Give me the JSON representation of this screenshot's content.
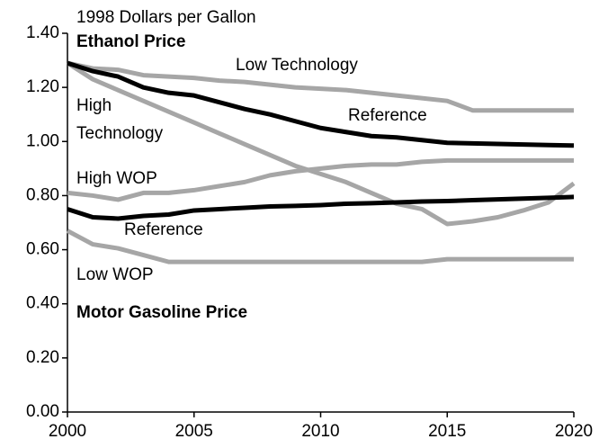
{
  "chart_data": {
    "type": "line",
    "y_label": "1998 Dollars per Gallon",
    "annotations": [
      "Ethanol Price",
      "Motor Gasoline Price"
    ],
    "x": [
      2000,
      2001,
      2002,
      2003,
      2004,
      2005,
      2006,
      2007,
      2008,
      2009,
      2010,
      2011,
      2012,
      2013,
      2014,
      2015,
      2016,
      2017,
      2018,
      2019,
      2020
    ],
    "xlim": [
      2000,
      2020
    ],
    "xticks": [
      2000,
      2005,
      2010,
      2015,
      2020
    ],
    "ylim": [
      0,
      1.4
    ],
    "yticks": [
      {
        "value": 0,
        "label": "0.00"
      },
      {
        "value": 0.2,
        "label": "0.20"
      },
      {
        "value": 0.4,
        "label": "0.40"
      },
      {
        "value": 0.6,
        "label": "0.60"
      },
      {
        "value": 0.8,
        "label": "0.80"
      },
      {
        "value": 1.0,
        "label": "1.00"
      },
      {
        "value": 1.2,
        "label": "1.20"
      },
      {
        "value": 1.4,
        "label": "1.40"
      }
    ],
    "grid": false,
    "series": [
      {
        "name": "Low Technology",
        "color": "#a6a6a6",
        "values": [
          1.29,
          1.27,
          1.265,
          1.245,
          1.24,
          1.235,
          1.225,
          1.22,
          1.21,
          1.2,
          1.195,
          1.19,
          1.18,
          1.17,
          1.16,
          1.15,
          1.115,
          1.115,
          1.115,
          1.115,
          1.115
        ]
      },
      {
        "name": "High Technology",
        "color": "#a6a6a6",
        "values": [
          1.29,
          1.23,
          1.19,
          1.15,
          1.11,
          1.07,
          1.03,
          0.99,
          0.95,
          0.91,
          0.88,
          0.85,
          0.81,
          0.77,
          0.75,
          0.695,
          0.705,
          0.72,
          0.745,
          0.775,
          0.845
        ]
      },
      {
        "name": "Reference",
        "color": "#000000",
        "values": [
          1.29,
          1.26,
          1.24,
          1.2,
          1.18,
          1.17,
          1.145,
          1.12,
          1.1,
          1.075,
          1.05,
          1.035,
          1.02,
          1.015,
          1.005,
          0.995,
          0.993,
          0.991,
          0.989,
          0.987,
          0.985
        ]
      },
      {
        "name": "High WOP",
        "color": "#a6a6a6",
        "values": [
          0.81,
          0.8,
          0.785,
          0.81,
          0.81,
          0.82,
          0.835,
          0.85,
          0.875,
          0.89,
          0.9,
          0.91,
          0.915,
          0.915,
          0.925,
          0.93,
          0.93,
          0.93,
          0.93,
          0.93,
          0.93
        ]
      },
      {
        "name": "Low WOP",
        "color": "#a6a6a6",
        "values": [
          0.67,
          0.62,
          0.605,
          0.58,
          0.555,
          0.555,
          0.555,
          0.555,
          0.555,
          0.555,
          0.555,
          0.555,
          0.555,
          0.555,
          0.555,
          0.565,
          0.565,
          0.565,
          0.565,
          0.565,
          0.565
        ]
      },
      {
        "name": "Reference",
        "color": "#000000",
        "values": [
          0.75,
          0.72,
          0.715,
          0.725,
          0.73,
          0.745,
          0.75,
          0.755,
          0.76,
          0.762,
          0.765,
          0.77,
          0.772,
          0.775,
          0.778,
          0.78,
          0.783,
          0.786,
          0.789,
          0.792,
          0.795
        ]
      }
    ]
  }
}
